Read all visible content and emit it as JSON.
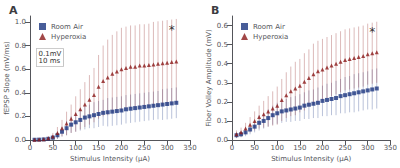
{
  "chart_data": [
    {
      "type": "scatter",
      "title": "A",
      "x_label": "Stimulus Intensity (μA)",
      "y_label": "fEPSP Slope (mV/ms)",
      "xlim": [
        0,
        350
      ],
      "xticks": [
        0,
        50,
        100,
        150,
        200,
        250,
        300,
        350
      ],
      "ylim": [
        0,
        1.05
      ],
      "yticks": [
        {
          "value": 0.0,
          "label": "0.0"
        },
        0.2,
        0.4,
        0.6,
        0.8,
        {
          "value": 1.0,
          "label": "1.0"
        }
      ],
      "grid": false,
      "legend": "upper left",
      "series": [
        {
          "name": "Room Air",
          "color": "#1a3580",
          "marker": "square",
          "x": [
            10,
            20,
            30,
            40,
            50,
            60,
            70,
            80,
            90,
            100,
            110,
            120,
            130,
            140,
            150,
            160,
            170,
            180,
            190,
            200,
            210,
            220,
            230,
            240,
            250,
            260,
            270,
            280,
            290,
            300,
            310,
            320
          ],
          "values": [
            0.002,
            0.003,
            0.005,
            0.01,
            0.02,
            0.04,
            0.07,
            0.1,
            0.13,
            0.15,
            0.17,
            0.19,
            0.2,
            0.21,
            0.22,
            0.23,
            0.235,
            0.24,
            0.245,
            0.25,
            0.26,
            0.265,
            0.27,
            0.275,
            0.28,
            0.285,
            0.29,
            0.295,
            0.3,
            0.305,
            0.31,
            0.315
          ],
          "errors": [
            0.002,
            0.003,
            0.005,
            0.01,
            0.02,
            0.03,
            0.04,
            0.06,
            0.07,
            0.08,
            0.09,
            0.1,
            0.1,
            0.11,
            0.11,
            0.11,
            0.12,
            0.12,
            0.12,
            0.12,
            0.12,
            0.12,
            0.12,
            0.12,
            0.12,
            0.12,
            0.12,
            0.12,
            0.13,
            0.13,
            0.13,
            0.13
          ]
        },
        {
          "name": "Hyperoxia",
          "color": "#8b1a1a",
          "marker": "triangle",
          "x": [
            10,
            20,
            30,
            40,
            50,
            60,
            70,
            80,
            90,
            100,
            110,
            120,
            130,
            140,
            150,
            160,
            170,
            180,
            190,
            200,
            210,
            220,
            230,
            240,
            250,
            260,
            270,
            280,
            290,
            300,
            310,
            320
          ],
          "values": [
            0.002,
            0.004,
            0.007,
            0.015,
            0.03,
            0.06,
            0.1,
            0.14,
            0.18,
            0.22,
            0.26,
            0.3,
            0.34,
            0.38,
            0.45,
            0.5,
            0.53,
            0.56,
            0.58,
            0.6,
            0.61,
            0.62,
            0.62,
            0.63,
            0.63,
            0.635,
            0.64,
            0.645,
            0.65,
            0.655,
            0.66,
            0.665
          ],
          "errors": [
            0.002,
            0.004,
            0.007,
            0.015,
            0.03,
            0.05,
            0.07,
            0.1,
            0.12,
            0.15,
            0.17,
            0.19,
            0.21,
            0.23,
            0.27,
            0.3,
            0.32,
            0.33,
            0.34,
            0.35,
            0.35,
            0.35,
            0.35,
            0.35,
            0.35,
            0.35,
            0.36,
            0.36,
            0.36,
            0.36,
            0.36,
            0.36
          ]
        }
      ],
      "annotations": [
        {
          "text": "*",
          "x": 310,
          "y": 0.98
        },
        {
          "text": "0.1mV\n10 ms"
        }
      ]
    },
    {
      "type": "scatter",
      "title": "B",
      "x_label": "Stimulus Intensity (μA)",
      "y_label": "Fiber Volley Amplitude (mV)",
      "xlim": [
        0,
        350
      ],
      "xticks": [
        0,
        50,
        100,
        150,
        200,
        250,
        300,
        350
      ],
      "ylim": [
        0,
        0.65
      ],
      "yticks": [
        {
          "value": 0.0,
          "label": "0.0"
        },
        0.1,
        0.2,
        0.3,
        0.4,
        0.5,
        0.6
      ],
      "grid": false,
      "legend": "upper left",
      "series": [
        {
          "name": "Room Air",
          "color": "#1a3580",
          "marker": "square",
          "x": [
            10,
            20,
            30,
            40,
            50,
            60,
            70,
            80,
            90,
            100,
            110,
            120,
            130,
            140,
            150,
            160,
            170,
            180,
            190,
            200,
            210,
            220,
            230,
            240,
            250,
            260,
            270,
            280,
            290,
            300,
            310,
            320
          ],
          "values": [
            0.025,
            0.03,
            0.04,
            0.055,
            0.07,
            0.09,
            0.1,
            0.115,
            0.13,
            0.14,
            0.15,
            0.155,
            0.16,
            0.165,
            0.17,
            0.18,
            0.185,
            0.19,
            0.195,
            0.205,
            0.21,
            0.215,
            0.22,
            0.23,
            0.235,
            0.24,
            0.245,
            0.25,
            0.255,
            0.26,
            0.265,
            0.27
          ],
          "errors": [
            0.015,
            0.015,
            0.02,
            0.025,
            0.03,
            0.04,
            0.04,
            0.045,
            0.05,
            0.055,
            0.06,
            0.06,
            0.065,
            0.065,
            0.07,
            0.07,
            0.075,
            0.075,
            0.08,
            0.08,
            0.085,
            0.085,
            0.09,
            0.09,
            0.095,
            0.095,
            0.1,
            0.1,
            0.1,
            0.1,
            0.105,
            0.105
          ]
        },
        {
          "name": "Hyperoxia",
          "color": "#8b1a1a",
          "marker": "triangle",
          "x": [
            10,
            20,
            30,
            40,
            50,
            60,
            70,
            80,
            90,
            100,
            110,
            120,
            130,
            140,
            150,
            160,
            170,
            180,
            190,
            200,
            210,
            220,
            230,
            240,
            250,
            260,
            270,
            280,
            290,
            300,
            310,
            320
          ],
          "values": [
            0.03,
            0.04,
            0.06,
            0.08,
            0.1,
            0.12,
            0.135,
            0.15,
            0.165,
            0.18,
            0.21,
            0.235,
            0.255,
            0.27,
            0.285,
            0.305,
            0.325,
            0.345,
            0.36,
            0.37,
            0.38,
            0.39,
            0.4,
            0.41,
            0.42,
            0.425,
            0.43,
            0.435,
            0.44,
            0.45,
            0.455,
            0.46
          ],
          "errors": [
            0.02,
            0.025,
            0.03,
            0.04,
            0.05,
            0.06,
            0.07,
            0.08,
            0.09,
            0.1,
            0.11,
            0.12,
            0.13,
            0.14,
            0.14,
            0.15,
            0.15,
            0.16,
            0.16,
            0.16,
            0.16,
            0.16,
            0.16,
            0.16,
            0.16,
            0.16,
            0.16,
            0.16,
            0.16,
            0.16,
            0.16,
            0.16
          ]
        }
      ],
      "annotations": [
        {
          "text": "*",
          "x": 310,
          "y": 0.6
        }
      ]
    }
  ]
}
